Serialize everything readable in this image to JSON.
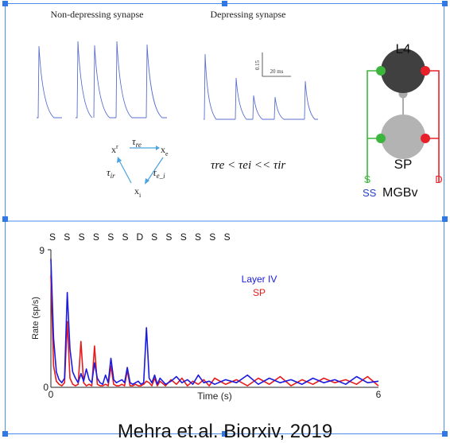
{
  "top_panel": {
    "title_nondepressing": "Non-depressing synapse",
    "title_depressing": "Depressing synapse",
    "scale_vertical": "0.15",
    "scale_horizontal": "20 ms",
    "cycle_top": "τ",
    "cycle_top_sub": "re",
    "cycle_right_sub": "e_i",
    "cycle_left_sub": "ir",
    "node_xr": "x",
    "node_xr_sub": "r",
    "node_xe": "x",
    "node_xe_sub": "e",
    "node_xi": "x",
    "node_xi_sub": "i",
    "inequality": "τre < τei << τir",
    "circuit": {
      "label_l4": "L4",
      "label_sp": "SP",
      "label_s": "S",
      "label_d": "D",
      "label_ss": "SS",
      "label_mgbv": "MGBv",
      "colors": {
        "green": "#3cb53c",
        "red": "#e8202a",
        "blue": "#2340c8"
      }
    }
  },
  "bottom_panel": {
    "stim_sequence": [
      "S",
      "S",
      "S",
      "S",
      "S",
      "S",
      "D",
      "S",
      "S",
      "S",
      "S",
      "S",
      "S"
    ],
    "legend_layer4": "Layer IV",
    "legend_sp": "SP",
    "ylabel": "Rate (sp/s)",
    "xlabel": "Time (s)",
    "ytick_top": "9",
    "ytick_bottom": "0",
    "xtick_left": "0",
    "xtick_right": "6"
  },
  "chart_data": {
    "type": "line",
    "xlabel": "Time (s)",
    "ylabel": "Rate (sp/s)",
    "xlim": [
      0,
      6
    ],
    "ylim": [
      0,
      9
    ],
    "series": [
      {
        "name": "Layer IV",
        "color": "#1a1ae0",
        "x": [
          0,
          0.05,
          0.1,
          0.15,
          0.2,
          0.25,
          0.3,
          0.35,
          0.4,
          0.45,
          0.5,
          0.55,
          0.6,
          0.65,
          0.7,
          0.75,
          0.8,
          0.85,
          0.9,
          0.95,
          1.0,
          1.05,
          1.1,
          1.15,
          1.2,
          1.25,
          1.3,
          1.35,
          1.4,
          1.45,
          1.5,
          1.55,
          1.6,
          1.65,
          1.7,
          1.75,
          1.8,
          1.85,
          1.9,
          1.95,
          2.0,
          2.1,
          2.2,
          2.3,
          2.4,
          2.5,
          2.6,
          2.7,
          2.8,
          2.9,
          3.0,
          3.2,
          3.4,
          3.6,
          3.8,
          4.0,
          4.2,
          4.4,
          4.6,
          4.8,
          5.0,
          5.2,
          5.4,
          5.6,
          5.8,
          6.0
        ],
        "y": [
          8.4,
          3.2,
          1.0,
          0.5,
          0.3,
          0.6,
          6.2,
          2.5,
          1.0,
          0.6,
          0.3,
          0.9,
          0.4,
          1.2,
          0.5,
          0.3,
          1.6,
          0.6,
          0.3,
          0.2,
          0.8,
          0.3,
          1.9,
          0.5,
          0.3,
          0.4,
          0.5,
          0.3,
          1.3,
          0.3,
          0.2,
          0.3,
          0.4,
          0.2,
          0.3,
          3.9,
          0.6,
          0.3,
          0.8,
          0.2,
          0.6,
          0.2,
          0.4,
          0.7,
          0.3,
          0.5,
          0.2,
          0.8,
          0.3,
          0.4,
          0.2,
          0.5,
          0.3,
          0.8,
          0.2,
          0.6,
          0.3,
          0.5,
          0.2,
          0.6,
          0.3,
          0.5,
          0.2,
          0.7,
          0.3,
          0.4
        ]
      },
      {
        "name": "SP",
        "color": "#e81a1a",
        "x": [
          0,
          0.05,
          0.1,
          0.15,
          0.2,
          0.25,
          0.3,
          0.35,
          0.4,
          0.45,
          0.5,
          0.55,
          0.6,
          0.65,
          0.7,
          0.75,
          0.8,
          0.85,
          0.9,
          0.95,
          1.0,
          1.05,
          1.1,
          1.15,
          1.2,
          1.25,
          1.3,
          1.35,
          1.4,
          1.45,
          1.5,
          1.55,
          1.6,
          1.65,
          1.7,
          1.75,
          1.8,
          1.85,
          1.9,
          1.95,
          2.0,
          2.1,
          2.2,
          2.3,
          2.4,
          2.5,
          2.6,
          2.7,
          2.8,
          2.9,
          3.0,
          3.2,
          3.4,
          3.6,
          3.8,
          4.0,
          4.2,
          4.4,
          4.6,
          4.8,
          5.0,
          5.2,
          5.4,
          5.6,
          5.8,
          6.0
        ],
        "y": [
          7.3,
          1.4,
          0.4,
          0.2,
          0.1,
          0.3,
          4.3,
          0.6,
          0.2,
          0.1,
          0.2,
          3.0,
          0.3,
          0.1,
          0.2,
          0.1,
          2.7,
          0.2,
          0.1,
          0.1,
          0.2,
          0.1,
          1.4,
          0.2,
          0.1,
          0.1,
          0.2,
          0.1,
          1.1,
          0.1,
          0.1,
          0.2,
          0.1,
          0.1,
          0.2,
          0.4,
          0.3,
          0.1,
          0.6,
          0.1,
          0.4,
          0.1,
          0.5,
          0.2,
          0.6,
          0.1,
          0.4,
          0.2,
          0.5,
          0.1,
          0.6,
          0.2,
          0.5,
          0.1,
          0.6,
          0.2,
          0.7,
          0.1,
          0.5,
          0.2,
          0.6,
          0.3,
          0.5,
          0.2,
          0.7,
          0.1
        ]
      }
    ]
  },
  "citation": "Mehra et.al. Biorxiv, 2019"
}
